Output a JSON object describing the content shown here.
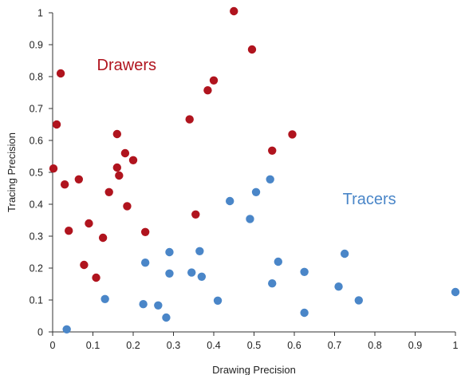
{
  "chart_data": {
    "type": "scatter",
    "xlabel": "Drawing Precision",
    "ylabel": "Tracing Precision",
    "xlim": [
      0,
      1
    ],
    "ylim": [
      0,
      1
    ],
    "grid": false,
    "x_ticks": [
      "0",
      "0.1",
      "0.2",
      "0.3",
      "0.4",
      "0.5",
      "0.6",
      "0.7",
      "0.8",
      "0.9",
      "1"
    ],
    "y_ticks": [
      "0",
      "0.1",
      "0.2",
      "0.3",
      "0.4",
      "0.5",
      "0.6",
      "0.7",
      "0.8",
      "0.9",
      "1"
    ],
    "annotations": [
      {
        "text": "Drawers",
        "color": "#b0141e",
        "x": 0.11,
        "y": 0.82
      },
      {
        "text": "Tracers",
        "color": "#4a86c8",
        "x": 0.72,
        "y": 0.4
      }
    ],
    "series": [
      {
        "name": "Drawers",
        "color": "#b0141e",
        "points": [
          [
            0.45,
            1.005
          ],
          [
            0.495,
            0.885
          ],
          [
            0.02,
            0.81
          ],
          [
            0.4,
            0.788
          ],
          [
            0.385,
            0.757
          ],
          [
            0.34,
            0.666
          ],
          [
            0.01,
            0.65
          ],
          [
            0.16,
            0.62
          ],
          [
            0.595,
            0.619
          ],
          [
            0.545,
            0.568
          ],
          [
            0.18,
            0.56
          ],
          [
            0.2,
            0.538
          ],
          [
            0.002,
            0.512
          ],
          [
            0.16,
            0.515
          ],
          [
            0.165,
            0.49
          ],
          [
            0.065,
            0.478
          ],
          [
            0.03,
            0.462
          ],
          [
            0.14,
            0.438
          ],
          [
            0.185,
            0.394
          ],
          [
            0.355,
            0.368
          ],
          [
            0.09,
            0.34
          ],
          [
            0.04,
            0.317
          ],
          [
            0.23,
            0.313
          ],
          [
            0.125,
            0.295
          ],
          [
            0.078,
            0.21
          ],
          [
            0.108,
            0.17
          ]
        ]
      },
      {
        "name": "Tracers",
        "color": "#4a86c8",
        "points": [
          [
            0.54,
            0.478
          ],
          [
            0.505,
            0.438
          ],
          [
            0.44,
            0.41
          ],
          [
            0.49,
            0.354
          ],
          [
            0.365,
            0.253
          ],
          [
            0.29,
            0.25
          ],
          [
            0.725,
            0.245
          ],
          [
            0.23,
            0.217
          ],
          [
            0.56,
            0.22
          ],
          [
            0.625,
            0.188
          ],
          [
            0.345,
            0.186
          ],
          [
            0.29,
            0.183
          ],
          [
            0.37,
            0.173
          ],
          [
            0.545,
            0.152
          ],
          [
            0.71,
            0.142
          ],
          [
            1.0,
            0.125
          ],
          [
            0.13,
            0.103
          ],
          [
            0.41,
            0.098
          ],
          [
            0.76,
            0.099
          ],
          [
            0.225,
            0.087
          ],
          [
            0.262,
            0.083
          ],
          [
            0.625,
            0.06
          ],
          [
            0.282,
            0.045
          ],
          [
            0.035,
            0.008
          ]
        ]
      }
    ]
  }
}
